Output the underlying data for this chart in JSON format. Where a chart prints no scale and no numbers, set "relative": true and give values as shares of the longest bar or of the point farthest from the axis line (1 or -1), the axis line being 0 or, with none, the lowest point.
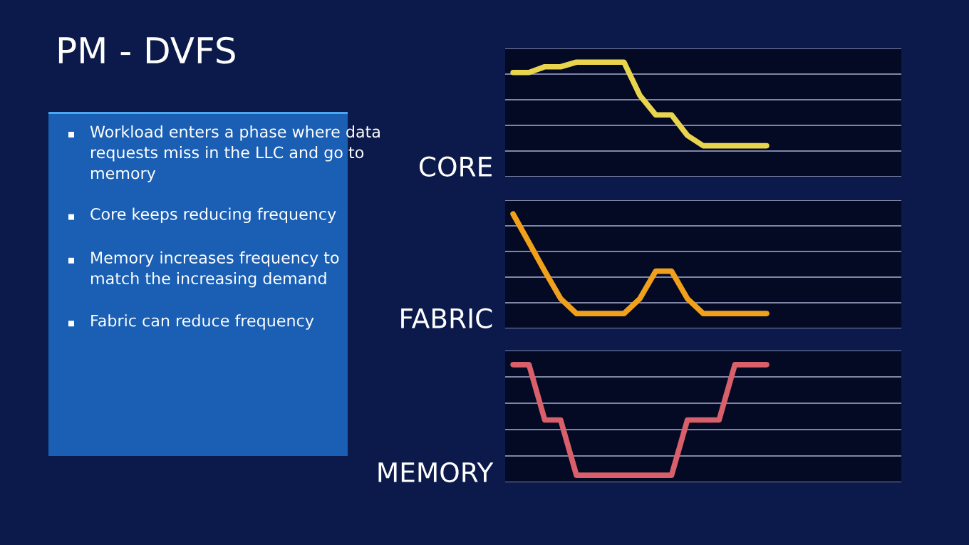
{
  "chart_data": [
    {
      "type": "other",
      "title": "PM - DVFS",
      "annotations": [
        "Workload enters a phase where data requests miss in the LLC and go to memory",
        "Core keeps reducing frequency",
        "Memory increases frequency to match the increasing demand",
        "Fabric can reduce frequency"
      ]
    },
    {
      "type": "line",
      "relative": true,
      "ylabel": "CORE",
      "grid": "y",
      "legend": false,
      "marker": "none",
      "line_style": "solid",
      "categories": [
        null,
        null,
        null,
        null,
        null,
        null,
        null,
        null,
        null,
        null,
        null,
        null,
        null,
        null,
        null,
        null,
        null,
        null,
        null,
        null,
        null,
        null,
        null,
        null,
        null
      ],
      "series": [
        {
          "color": "#e8d44d",
          "values": [
            0.91,
            0.91,
            0.96,
            0.96,
            1,
            1,
            1,
            1,
            0.71,
            0.54,
            0.54,
            0.36,
            0.27,
            0.27,
            0.27,
            0.27,
            0.27,
            null,
            null,
            null,
            null,
            null,
            null,
            null,
            null
          ]
        }
      ]
    },
    {
      "type": "line",
      "relative": true,
      "ylabel": "FABRIC",
      "grid": "y",
      "legend": false,
      "marker": "none",
      "line_style": "solid",
      "categories": [
        null,
        null,
        null,
        null,
        null,
        null,
        null,
        null,
        null,
        null,
        null,
        null,
        null,
        null,
        null,
        null,
        null,
        null,
        null,
        null,
        null,
        null,
        null,
        null,
        null
      ],
      "series": [
        {
          "color": "#f0a01a",
          "values": [
            1,
            0.75,
            0.5,
            0.26,
            0.13,
            0.13,
            0.13,
            0.13,
            0.26,
            0.5,
            0.5,
            0.26,
            0.13,
            0.13,
            0.13,
            0.13,
            0.13,
            null,
            null,
            null,
            null,
            null,
            null,
            null,
            null
          ]
        }
      ]
    },
    {
      "type": "line",
      "relative": true,
      "ylabel": "MEMORY",
      "grid": "y",
      "legend": false,
      "marker": "none",
      "line_style": "solid",
      "categories": [
        null,
        null,
        null,
        null,
        null,
        null,
        null,
        null,
        null,
        null,
        null,
        null,
        null,
        null,
        null,
        null,
        null,
        null,
        null,
        null,
        null,
        null,
        null,
        null,
        null
      ],
      "series": [
        {
          "color": "#d9606a",
          "values": [
            1,
            1,
            0.53,
            0.53,
            0.06,
            0.06,
            0.06,
            0.06,
            0.06,
            0.06,
            0.06,
            0.53,
            0.53,
            0.53,
            1,
            1,
            1,
            null,
            null,
            null,
            null,
            null,
            null,
            null,
            null
          ]
        }
      ]
    }
  ]
}
